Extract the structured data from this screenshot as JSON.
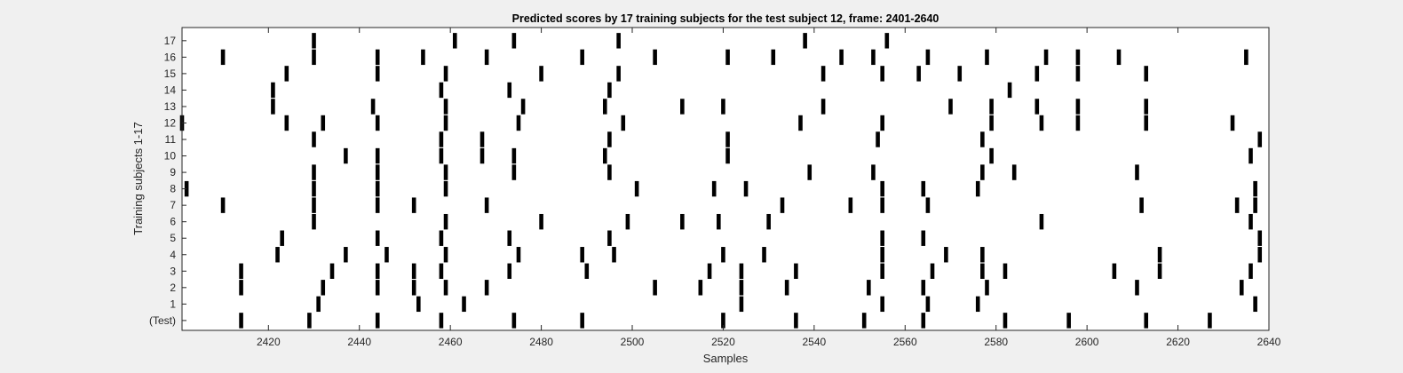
{
  "chart_data": {
    "type": "raster",
    "title": "Predicted scores by 17 training subjects for the test subject 12, frame: 2401-2640",
    "xlabel": "Samples",
    "ylabel": "Training subjects 1-17",
    "xlim": [
      2401,
      2640
    ],
    "xticks": [
      2420,
      2440,
      2460,
      2480,
      2500,
      2520,
      2540,
      2560,
      2580,
      2600,
      2620,
      2640
    ],
    "grid": false,
    "legend": "none",
    "colors": {
      "background": "#ffffff",
      "marks": "#000000",
      "axis": "#262626"
    },
    "rows": [
      {
        "label": "(Test)",
        "x": [
          2414,
          2429,
          2444,
          2458,
          2474,
          2489,
          2520,
          2536,
          2551,
          2564,
          2582,
          2596,
          2613,
          2627
        ]
      },
      {
        "label": "1",
        "x": [
          2431,
          2453,
          2463,
          2524,
          2555,
          2565,
          2576,
          2637
        ]
      },
      {
        "label": "2",
        "x": [
          2414,
          2432,
          2444,
          2452,
          2459,
          2468,
          2505,
          2515,
          2524,
          2534,
          2552,
          2564,
          2578,
          2611,
          2634
        ]
      },
      {
        "label": "3",
        "x": [
          2414,
          2434,
          2444,
          2452,
          2458,
          2473,
          2490,
          2517,
          2524,
          2536,
          2555,
          2566,
          2577,
          2582,
          2606,
          2616,
          2636
        ]
      },
      {
        "label": "4",
        "x": [
          2422,
          2437,
          2446,
          2459,
          2475,
          2489,
          2496,
          2520,
          2529,
          2555,
          2569,
          2577,
          2616,
          2638
        ]
      },
      {
        "label": "5",
        "x": [
          2423,
          2444,
          2458,
          2473,
          2495,
          2555,
          2564,
          2638
        ]
      },
      {
        "label": "6",
        "x": [
          2430,
          2459,
          2480,
          2499,
          2511,
          2519,
          2530,
          2590,
          2636
        ]
      },
      {
        "label": "7",
        "x": [
          2410,
          2430,
          2444,
          2452,
          2468,
          2533,
          2548,
          2555,
          2565,
          2612,
          2633,
          2637
        ]
      },
      {
        "label": "8",
        "x": [
          2402,
          2430,
          2444,
          2459,
          2501,
          2518,
          2525,
          2555,
          2564,
          2576,
          2637
        ]
      },
      {
        "label": "9",
        "x": [
          2430,
          2444,
          2459,
          2474,
          2495,
          2539,
          2553,
          2577,
          2584,
          2611
        ]
      },
      {
        "label": "10",
        "x": [
          2437,
          2444,
          2458,
          2467,
          2474,
          2494,
          2521,
          2579,
          2636
        ]
      },
      {
        "label": "11",
        "x": [
          2430,
          2458,
          2467,
          2495,
          2521,
          2554,
          2577,
          2638
        ]
      },
      {
        "label": "12",
        "x": [
          2401,
          2424,
          2432,
          2444,
          2459,
          2475,
          2498,
          2537,
          2555,
          2579,
          2590,
          2598,
          2613,
          2632
        ]
      },
      {
        "label": "13",
        "x": [
          2421,
          2443,
          2459,
          2476,
          2494,
          2511,
          2520,
          2542,
          2570,
          2579,
          2589,
          2598,
          2613
        ]
      },
      {
        "label": "14",
        "x": [
          2421,
          2458,
          2473,
          2495,
          2583
        ]
      },
      {
        "label": "15",
        "x": [
          2424,
          2444,
          2459,
          2480,
          2497,
          2542,
          2555,
          2563,
          2572,
          2589,
          2598,
          2613
        ]
      },
      {
        "label": "16",
        "x": [
          2410,
          2430,
          2444,
          2454,
          2468,
          2489,
          2505,
          2521,
          2531,
          2546,
          2553,
          2565,
          2578,
          2591,
          2598,
          2607,
          2635
        ]
      },
      {
        "label": "17",
        "x": [
          2430,
          2461,
          2474,
          2497,
          2538,
          2556
        ]
      }
    ]
  }
}
